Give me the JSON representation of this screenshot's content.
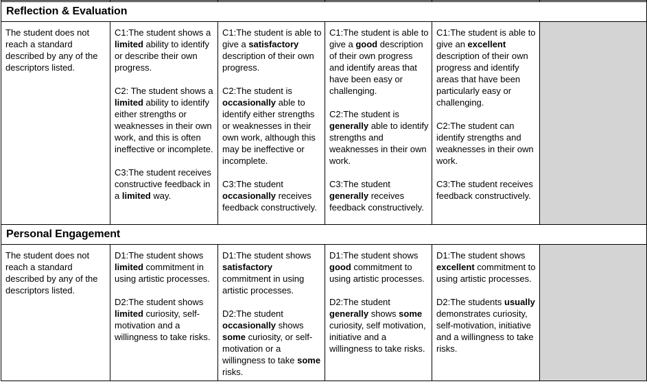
{
  "page": {
    "background_color": "#ffffff",
    "border_color": "#000000",
    "empty_score_cell_color": "#d4d4d4",
    "text_color": "#000000"
  },
  "sections": [
    {
      "title": "Reflection & Evaluation",
      "fallback": "The student does not reach a standard described by any of the descriptors listed.",
      "cells": [
        [
          [
            {
              "text": "C1:The student shows a ",
              "bold": false
            },
            {
              "text": "limited",
              "bold": true
            },
            {
              "text": " ability to identify or describe their own progress.",
              "bold": false
            }
          ],
          [
            {
              "text": "C2: The student shows a ",
              "bold": false
            },
            {
              "text": "limited",
              "bold": true
            },
            {
              "text": " ability to identify either strengths or weaknesses in their own work, and this is often ineffective or incomplete.",
              "bold": false
            }
          ],
          [
            {
              "text": "C3:The student receives constructive feedback in a ",
              "bold": false
            },
            {
              "text": "limited",
              "bold": true
            },
            {
              "text": " way.",
              "bold": false
            }
          ]
        ],
        [
          [
            {
              "text": "C1:The student is able to give a ",
              "bold": false
            },
            {
              "text": "satisfactory",
              "bold": true
            },
            {
              "text": " description of their own progress.",
              "bold": false
            }
          ],
          [
            {
              "text": "C2:The student is ",
              "bold": false
            },
            {
              "text": "occasionally",
              "bold": true
            },
            {
              "text": " able to identify either strengths or weaknesses in their own work, although this may be ineffective or incomplete.",
              "bold": false
            }
          ],
          [
            {
              "text": "C3:The student ",
              "bold": false
            },
            {
              "text": "occasionally",
              "bold": true
            },
            {
              "text": " receives feedback constructively.",
              "bold": false
            }
          ]
        ],
        [
          [
            {
              "text": "C1:The student is able to give a ",
              "bold": false
            },
            {
              "text": "good",
              "bold": true
            },
            {
              "text": " description of their own progress and identify areas that have been easy or challenging.",
              "bold": false
            }
          ],
          [
            {
              "text": "C2:The student is ",
              "bold": false
            },
            {
              "text": "generally",
              "bold": true
            },
            {
              "text": " able to identify strengths and weaknesses in their own work.",
              "bold": false
            }
          ],
          [
            {
              "text": "C3:The student ",
              "bold": false
            },
            {
              "text": "generally",
              "bold": true
            },
            {
              "text": " receives feedback constructively.",
              "bold": false
            }
          ]
        ],
        [
          [
            {
              "text": "C1:The student is able to give an ",
              "bold": false
            },
            {
              "text": "excellent",
              "bold": true
            },
            {
              "text": " description of their own progress and identify areas that have been particularly easy or challenging.",
              "bold": false
            }
          ],
          [
            {
              "text": "C2:The student can identify strengths and weaknesses in their own work.",
              "bold": false
            }
          ],
          [
            {
              "text": "C3:The student receives feedback constructively.",
              "bold": false
            }
          ]
        ]
      ]
    },
    {
      "title": "Personal Engagement",
      "fallback": "The student does not reach a standard described by any of the descriptors listed.",
      "cells": [
        [
          [
            {
              "text": "D1:The student shows ",
              "bold": false
            },
            {
              "text": "limited",
              "bold": true
            },
            {
              "text": " commitment in using artistic processes.",
              "bold": false
            }
          ],
          [
            {
              "text": "D2:The student shows ",
              "bold": false
            },
            {
              "text": "limited",
              "bold": true
            },
            {
              "text": " curiosity, self-motivation and a willingness to take risks.",
              "bold": false
            }
          ]
        ],
        [
          [
            {
              "text": "D1:The student shows ",
              "bold": false
            },
            {
              "text": "satisfactory",
              "bold": true
            },
            {
              "text": " commitment in using artistic processes.",
              "bold": false
            }
          ],
          [
            {
              "text": "D2:The student ",
              "bold": false
            },
            {
              "text": "occasionally",
              "bold": true
            },
            {
              "text": " shows ",
              "bold": false
            },
            {
              "text": "some",
              "bold": true
            },
            {
              "text": " curiosity, or self-motivation or a willingness to take ",
              "bold": false
            },
            {
              "text": "some",
              "bold": true
            },
            {
              "text": " risks.",
              "bold": false
            }
          ]
        ],
        [
          [
            {
              "text": "D1:The student shows ",
              "bold": false
            },
            {
              "text": "good",
              "bold": true
            },
            {
              "text": " commitment to using artistic processes.",
              "bold": false
            }
          ],
          [
            {
              "text": "D2:The student ",
              "bold": false
            },
            {
              "text": "generally",
              "bold": true
            },
            {
              "text": " shows ",
              "bold": false
            },
            {
              "text": "some",
              "bold": true
            },
            {
              "text": " curiosity, self motivation, initiative and a willingness to take risks.",
              "bold": false
            }
          ]
        ],
        [
          [
            {
              "text": "D1:The student shows ",
              "bold": false
            },
            {
              "text": "excellent",
              "bold": true
            },
            {
              "text": " commitment to using artistic processes.",
              "bold": false
            }
          ],
          [
            {
              "text": "D2:The students ",
              "bold": false
            },
            {
              "text": "usually",
              "bold": true
            },
            {
              "text": " demonstrates curiosity, self-motivation, initiative and a willingness to take risks.",
              "bold": false
            }
          ]
        ]
      ]
    }
  ]
}
